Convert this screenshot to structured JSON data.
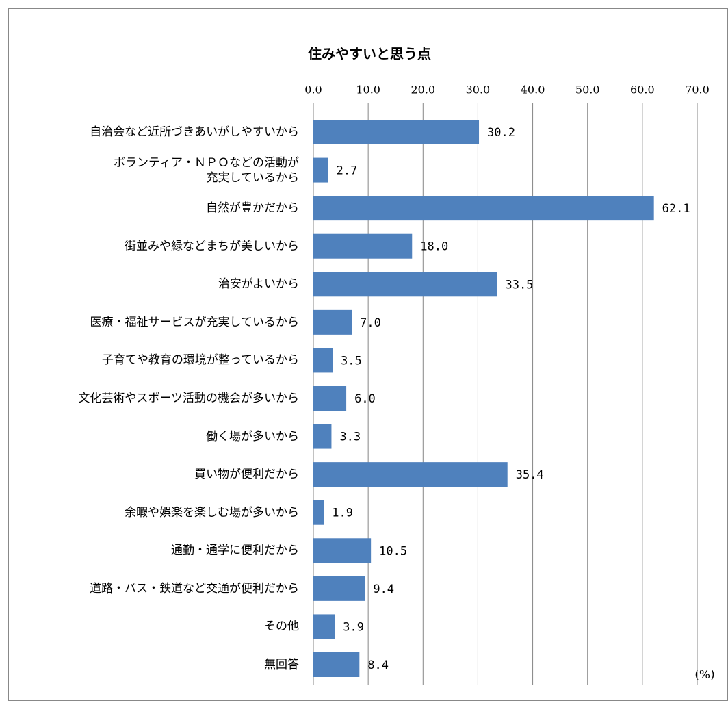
{
  "chart_data": {
    "type": "barh",
    "title": "住みやすいと思う点",
    "unit": "(%)",
    "categories": [
      "自治会など近所づきあいがしやすいから",
      "ボランティア・ＮＰＯなどの活動が\n充実しているから",
      "自然が豊かだから",
      "街並みや緑などまちが美しいから",
      "治安がよいから",
      "医療・福祉サービスが充実しているから",
      "子育てや教育の環境が整っているから",
      "文化芸術やスポーツ活動の機会が多いから",
      "働く場が多いから",
      "買い物が便利だから",
      "余暇や娯楽を楽しむ場が多いから",
      "通勤・通学に便利だから",
      "道路・バス・鉄道など交通が便利だから",
      "その他",
      "無回答"
    ],
    "values": [
      30.2,
      2.7,
      62.1,
      18.0,
      33.5,
      7.0,
      3.5,
      6.0,
      3.3,
      35.4,
      1.9,
      10.5,
      9.4,
      3.9,
      8.4
    ],
    "value_labels": [
      "30.2",
      "2.7",
      "62.1",
      "18.0",
      "33.5",
      "7.0",
      "3.5",
      "6.0",
      "3.3",
      "35.4",
      "1.9",
      "10.5",
      "9.4",
      "3.9",
      "8.4"
    ],
    "color": "#4f81bd",
    "xlim": [
      0,
      70
    ],
    "xticks": [
      {
        "value": 0,
        "label": "0.0"
      },
      {
        "value": 10,
        "label": "10.0"
      },
      {
        "value": 20,
        "label": "20.0"
      },
      {
        "value": 30,
        "label": "30.0"
      },
      {
        "value": 40,
        "label": "40.0"
      },
      {
        "value": 50,
        "label": "50.0"
      },
      {
        "value": 60,
        "label": "60.0"
      },
      {
        "value": 70,
        "label": "70.0"
      }
    ],
    "grid": true
  }
}
